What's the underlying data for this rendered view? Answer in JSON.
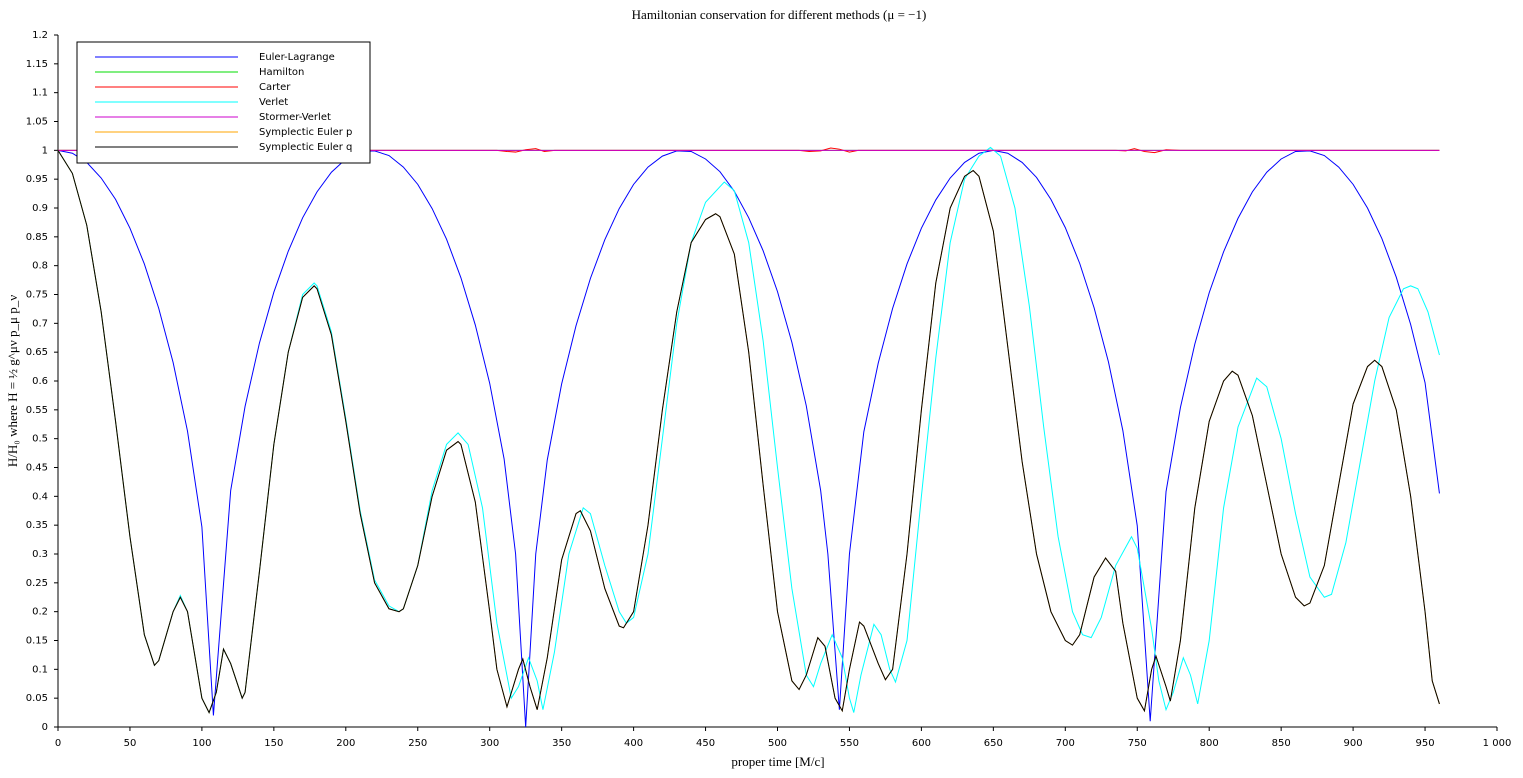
{
  "chart_data": {
    "type": "line",
    "title": "Hamiltonian conservation for different methods (μ = −1)",
    "x_label": "proper time [M/c]",
    "y_label": "H/H₀ where H = ½ g^μν p_μ p_ν",
    "xlim": [
      0,
      1000
    ],
    "xticks": [
      0,
      50,
      100,
      150,
      200,
      250,
      300,
      350,
      400,
      450,
      500,
      550,
      600,
      650,
      700,
      750,
      800,
      850,
      900,
      950,
      {
        "value": 1000,
        "label": "1 000"
      }
    ],
    "ylim": [
      0,
      1.2
    ],
    "yticks": [
      0,
      0.05,
      0.1,
      0.15,
      0.2,
      0.25,
      0.3,
      0.35,
      0.4,
      0.45,
      0.5,
      0.55,
      0.6,
      0.65,
      0.7,
      0.75,
      0.8,
      0.85,
      0.9,
      0.95,
      1,
      1.05,
      1.1,
      1.15,
      1.2
    ],
    "grid": false,
    "legend": "upper left",
    "series": [
      {
        "name": "Euler-Lagrange",
        "color": "#0000ff",
        "x": [
          0,
          10,
          20,
          30,
          40,
          50,
          60,
          70,
          80,
          90,
          100,
          108,
          120,
          130,
          140,
          150,
          160,
          170,
          180,
          190,
          200,
          210,
          220,
          230,
          240,
          250,
          260,
          270,
          280,
          290,
          300,
          310,
          318,
          325,
          332,
          340,
          350,
          360,
          370,
          380,
          390,
          400,
          410,
          420,
          430,
          440,
          450,
          460,
          470,
          480,
          490,
          500,
          510,
          520,
          530,
          535,
          543,
          550,
          560,
          570,
          580,
          590,
          600,
          610,
          620,
          630,
          640,
          650,
          660,
          670,
          680,
          690,
          700,
          710,
          720,
          730,
          740,
          750,
          759,
          770,
          780,
          790,
          800,
          810,
          820,
          830,
          840,
          850,
          860,
          870,
          880,
          890,
          900,
          910,
          920,
          930,
          940,
          950,
          960
        ],
        "values": [
          1,
          0.995,
          0.979,
          0.952,
          0.915,
          0.865,
          0.803,
          0.726,
          0.632,
          0.513,
          0.347,
          0.02,
          0.41,
          0.556,
          0.666,
          0.754,
          0.825,
          0.883,
          0.928,
          0.962,
          0.985,
          0.998,
          0.999,
          0.991,
          0.971,
          0.941,
          0.899,
          0.846,
          0.779,
          0.697,
          0.596,
          0.465,
          0.3,
          0.0,
          0.3,
          0.463,
          0.595,
          0.696,
          0.778,
          0.845,
          0.899,
          0.941,
          0.971,
          0.99,
          0.999,
          0.998,
          0.985,
          0.963,
          0.929,
          0.883,
          0.826,
          0.755,
          0.667,
          0.557,
          0.41,
          0.3,
          0.03,
          0.3,
          0.512,
          0.631,
          0.726,
          0.803,
          0.865,
          0.914,
          0.952,
          0.979,
          0.995,
          1.0,
          0.995,
          0.979,
          0.953,
          0.915,
          0.866,
          0.804,
          0.727,
          0.633,
          0.514,
          0.349,
          0.01,
          0.408,
          0.554,
          0.664,
          0.753,
          0.824,
          0.882,
          0.928,
          0.962,
          0.985,
          0.998,
          0.999,
          0.991,
          0.971,
          0.941,
          0.9,
          0.847,
          0.78,
          0.698,
          0.597,
          0.405
        ]
      },
      {
        "name": "Hamilton",
        "color": "#00dd00",
        "x": [
          0,
          960
        ],
        "values": [
          1,
          1
        ]
      },
      {
        "name": "Carter",
        "color": "#ff0000",
        "x": [
          0,
          305,
          312,
          318,
          325,
          332,
          338,
          345,
          515,
          522,
          530,
          537,
          543,
          550,
          556,
          735,
          742,
          748,
          755,
          762,
          770,
          780,
          960
        ],
        "values": [
          1,
          1,
          0.998,
          0.997,
          1.001,
          1.003,
          0.998,
          1,
          1,
          0.998,
          0.999,
          1.004,
          1.002,
          0.997,
          1,
          1,
          0.999,
          1.003,
          0.998,
          0.996,
          1.001,
          1,
          1
        ]
      },
      {
        "name": "Verlet",
        "color": "#00ffff",
        "x": [
          0,
          10,
          20,
          30,
          40,
          50,
          60,
          67,
          70,
          80,
          85,
          90,
          100,
          105,
          110,
          115,
          120,
          128,
          130,
          140,
          150,
          160,
          170,
          178,
          180,
          190,
          200,
          210,
          220,
          230,
          237,
          240,
          250,
          260,
          270,
          278,
          285,
          295,
          305,
          315,
          320,
          327,
          333,
          337,
          345,
          355,
          365,
          370,
          380,
          390,
          395,
          400,
          410,
          420,
          430,
          440,
          450,
          463,
          470,
          480,
          490,
          500,
          510,
          520,
          525,
          530,
          538,
          545,
          550,
          553,
          558,
          567,
          572,
          578,
          582,
          590,
          600,
          610,
          620,
          630,
          640,
          648,
          655,
          665,
          675,
          685,
          695,
          705,
          712,
          718,
          725,
          735,
          746,
          750,
          760,
          765,
          770,
          775,
          782,
          787,
          792,
          800,
          810,
          820,
          833,
          840,
          850,
          860,
          870,
          880,
          885,
          895,
          905,
          915,
          925,
          935,
          940,
          945,
          952,
          960
        ],
        "values": [
          1,
          0.96,
          0.87,
          0.72,
          0.53,
          0.33,
          0.16,
          0.107,
          0.115,
          0.2,
          0.228,
          0.2,
          0.05,
          0.025,
          0.06,
          0.135,
          0.11,
          0.05,
          0.06,
          0.27,
          0.49,
          0.65,
          0.75,
          0.77,
          0.765,
          0.685,
          0.535,
          0.375,
          0.255,
          0.21,
          0.2,
          0.205,
          0.28,
          0.41,
          0.49,
          0.51,
          0.49,
          0.38,
          0.18,
          0.05,
          0.07,
          0.12,
          0.08,
          0.03,
          0.13,
          0.3,
          0.38,
          0.37,
          0.28,
          0.2,
          0.18,
          0.19,
          0.3,
          0.5,
          0.7,
          0.84,
          0.91,
          0.945,
          0.93,
          0.84,
          0.67,
          0.45,
          0.24,
          0.09,
          0.07,
          0.11,
          0.16,
          0.12,
          0.05,
          0.025,
          0.09,
          0.178,
          0.16,
          0.1,
          0.078,
          0.15,
          0.4,
          0.64,
          0.84,
          0.95,
          0.99,
          1.005,
          0.99,
          0.9,
          0.73,
          0.52,
          0.33,
          0.2,
          0.16,
          0.155,
          0.19,
          0.28,
          0.33,
          0.31,
          0.17,
          0.08,
          0.03,
          0.06,
          0.12,
          0.09,
          0.04,
          0.15,
          0.38,
          0.52,
          0.605,
          0.59,
          0.5,
          0.37,
          0.26,
          0.225,
          0.23,
          0.32,
          0.46,
          0.6,
          0.71,
          0.76,
          0.765,
          0.76,
          0.72,
          0.645
        ]
      },
      {
        "name": "Stormer-Verlet",
        "color": "#cc00cc",
        "x": [
          0,
          960
        ],
        "values": [
          1,
          1
        ]
      },
      {
        "name": "Symplectic Euler p",
        "color": "#ffa500",
        "x": [
          0,
          10,
          20,
          30,
          40,
          50,
          60,
          67,
          70,
          80,
          85,
          90,
          100,
          105,
          110,
          115,
          120,
          128,
          130,
          140,
          150,
          160,
          170,
          178,
          180,
          190,
          200,
          210,
          220,
          230,
          237,
          240,
          250,
          260,
          270,
          278,
          280,
          290,
          300,
          305,
          312,
          320,
          323,
          328,
          333,
          340,
          350,
          360,
          363,
          370,
          380,
          390,
          393,
          400,
          410,
          420,
          430,
          440,
          450,
          457,
          460,
          470,
          480,
          490,
          500,
          510,
          515,
          520,
          528,
          533,
          540,
          545,
          550,
          557,
          560,
          570,
          575,
          580,
          590,
          600,
          610,
          620,
          630,
          636,
          640,
          650,
          660,
          670,
          680,
          690,
          700,
          705,
          710,
          720,
          728,
          735,
          740,
          750,
          755,
          760,
          763,
          770,
          773,
          780,
          790,
          800,
          810,
          816,
          820,
          830,
          840,
          850,
          860,
          866,
          870,
          880,
          890,
          900,
          910,
          915,
          920,
          930,
          940,
          950,
          955,
          960
        ],
        "values": [
          1,
          0.96,
          0.87,
          0.72,
          0.53,
          0.33,
          0.16,
          0.107,
          0.115,
          0.2,
          0.225,
          0.2,
          0.05,
          0.025,
          0.06,
          0.135,
          0.11,
          0.05,
          0.06,
          0.27,
          0.49,
          0.65,
          0.745,
          0.765,
          0.76,
          0.68,
          0.53,
          0.37,
          0.25,
          0.205,
          0.2,
          0.205,
          0.28,
          0.4,
          0.48,
          0.495,
          0.49,
          0.39,
          0.2,
          0.1,
          0.035,
          0.1,
          0.118,
          0.07,
          0.03,
          0.12,
          0.29,
          0.37,
          0.375,
          0.34,
          0.24,
          0.175,
          0.172,
          0.2,
          0.35,
          0.55,
          0.72,
          0.84,
          0.88,
          0.89,
          0.885,
          0.82,
          0.65,
          0.42,
          0.2,
          0.08,
          0.065,
          0.09,
          0.155,
          0.14,
          0.05,
          0.028,
          0.1,
          0.182,
          0.175,
          0.11,
          0.082,
          0.1,
          0.3,
          0.55,
          0.77,
          0.9,
          0.955,
          0.965,
          0.955,
          0.86,
          0.66,
          0.46,
          0.3,
          0.2,
          0.15,
          0.142,
          0.16,
          0.26,
          0.293,
          0.27,
          0.18,
          0.05,
          0.028,
          0.1,
          0.123,
          0.07,
          0.045,
          0.15,
          0.38,
          0.53,
          0.6,
          0.617,
          0.61,
          0.54,
          0.42,
          0.3,
          0.225,
          0.21,
          0.215,
          0.28,
          0.42,
          0.56,
          0.625,
          0.636,
          0.625,
          0.55,
          0.4,
          0.2,
          0.08,
          0.04
        ]
      },
      {
        "name": "Symplectic Euler q",
        "color": "#000000",
        "x": [
          0,
          10,
          20,
          30,
          40,
          50,
          60,
          67,
          70,
          80,
          85,
          90,
          100,
          105,
          110,
          115,
          120,
          128,
          130,
          140,
          150,
          160,
          170,
          178,
          180,
          190,
          200,
          210,
          220,
          230,
          237,
          240,
          250,
          260,
          270,
          278,
          280,
          290,
          300,
          305,
          312,
          320,
          323,
          328,
          333,
          340,
          350,
          360,
          363,
          370,
          380,
          390,
          393,
          400,
          410,
          420,
          430,
          440,
          450,
          457,
          460,
          470,
          480,
          490,
          500,
          510,
          515,
          520,
          528,
          533,
          540,
          545,
          550,
          557,
          560,
          570,
          575,
          580,
          590,
          600,
          610,
          620,
          630,
          636,
          640,
          650,
          660,
          670,
          680,
          690,
          700,
          705,
          710,
          720,
          728,
          735,
          740,
          750,
          755,
          760,
          763,
          770,
          773,
          780,
          790,
          800,
          810,
          816,
          820,
          830,
          840,
          850,
          860,
          866,
          870,
          880,
          890,
          900,
          910,
          915,
          920,
          930,
          940,
          950,
          955,
          960
        ],
        "values": [
          1,
          0.96,
          0.87,
          0.72,
          0.53,
          0.33,
          0.16,
          0.107,
          0.115,
          0.2,
          0.225,
          0.2,
          0.05,
          0.025,
          0.06,
          0.135,
          0.11,
          0.05,
          0.06,
          0.27,
          0.49,
          0.65,
          0.745,
          0.765,
          0.76,
          0.68,
          0.53,
          0.37,
          0.25,
          0.205,
          0.2,
          0.205,
          0.28,
          0.4,
          0.48,
          0.495,
          0.49,
          0.39,
          0.2,
          0.1,
          0.035,
          0.1,
          0.118,
          0.07,
          0.03,
          0.12,
          0.29,
          0.37,
          0.375,
          0.34,
          0.24,
          0.175,
          0.172,
          0.2,
          0.35,
          0.55,
          0.72,
          0.84,
          0.88,
          0.89,
          0.885,
          0.82,
          0.65,
          0.42,
          0.2,
          0.08,
          0.065,
          0.09,
          0.155,
          0.14,
          0.05,
          0.028,
          0.1,
          0.182,
          0.175,
          0.11,
          0.082,
          0.1,
          0.3,
          0.55,
          0.77,
          0.9,
          0.955,
          0.965,
          0.955,
          0.86,
          0.66,
          0.46,
          0.3,
          0.2,
          0.15,
          0.142,
          0.16,
          0.26,
          0.293,
          0.27,
          0.18,
          0.05,
          0.028,
          0.1,
          0.123,
          0.07,
          0.045,
          0.15,
          0.38,
          0.53,
          0.6,
          0.617,
          0.61,
          0.54,
          0.42,
          0.3,
          0.225,
          0.21,
          0.215,
          0.28,
          0.42,
          0.56,
          0.625,
          0.636,
          0.625,
          0.55,
          0.4,
          0.2,
          0.08,
          0.04
        ]
      }
    ]
  }
}
